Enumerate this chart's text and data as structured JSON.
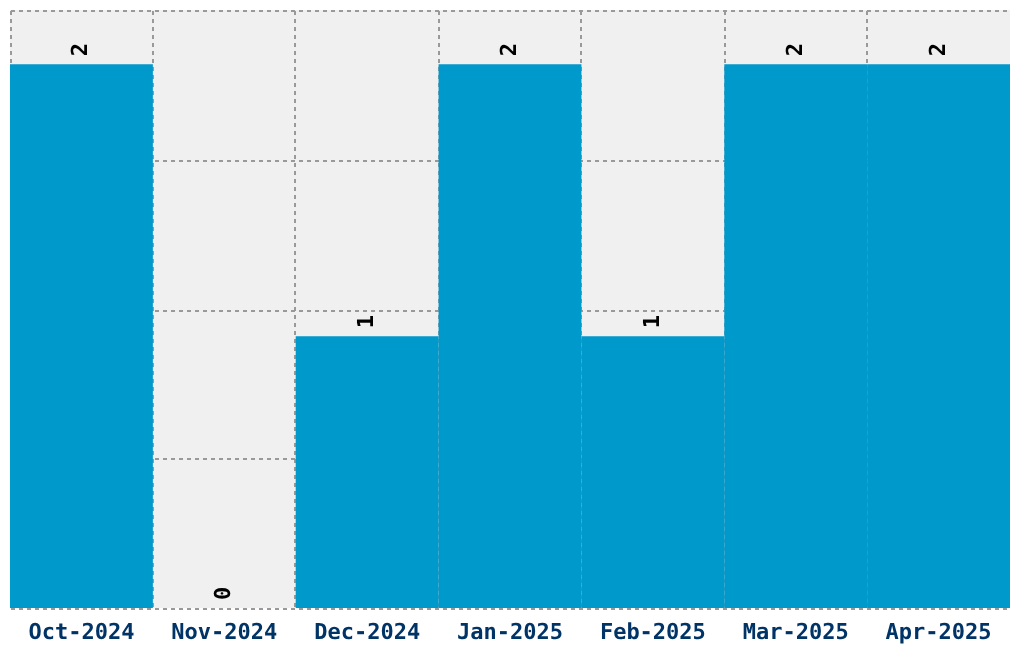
{
  "chart_data": {
    "type": "bar",
    "categories": [
      "Oct-2024",
      "Nov-2024",
      "Dec-2024",
      "Jan-2025",
      "Feb-2025",
      "Mar-2025",
      "Apr-2025"
    ],
    "values": [
      2,
      0,
      1,
      2,
      1,
      2,
      2
    ],
    "color": "#0099cc",
    "ylim": [
      0,
      2.2
    ],
    "yticks": [
      {
        "value": 0,
        "label": null
      },
      {
        "value": 0.55,
        "label": null
      },
      {
        "value": 1.1,
        "label": null
      },
      {
        "value": 1.65,
        "label": null
      },
      {
        "value": 2.2,
        "label": null
      }
    ],
    "grid": true,
    "data_labels": true,
    "tick_labels": "x"
  }
}
